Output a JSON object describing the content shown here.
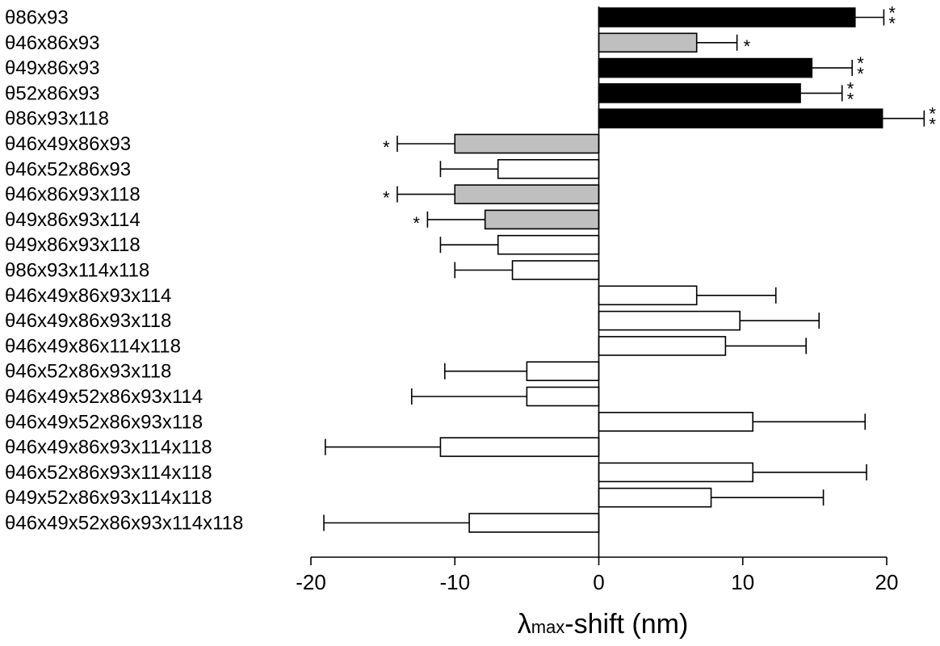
{
  "chart_data": {
    "type": "bar",
    "orientation": "horizontal",
    "categories": [
      "θ86x93",
      "θ46x86x93",
      "θ49x86x93",
      "θ52x86x93",
      "θ86x93x118",
      "θ46x49x86x93",
      "θ46x52x86x93",
      "θ46x86x93x118",
      "θ49x86x93x114",
      "θ49x86x93x118",
      "θ86x93x114x118",
      "θ46x49x86x93x114",
      "θ46x49x86x93x118",
      "θ46x49x86x114x118",
      "θ46x52x86x93x118",
      "θ46x49x52x86x93x114",
      "θ46x49x52x86x93x118",
      "θ46x49x86x93x114x118",
      "θ46x52x86x93x114x118",
      "θ49x52x86x93x114x118",
      "θ46x49x52x86x93x114x118"
    ],
    "values": [
      17.8,
      6.8,
      14.8,
      14.0,
      19.7,
      -10.0,
      -7.0,
      -10.0,
      -7.9,
      -7.0,
      -6.0,
      6.8,
      9.8,
      8.8,
      -5.0,
      -5.0,
      10.7,
      -11.0,
      10.7,
      7.8,
      -9.0
    ],
    "errors": [
      2.0,
      2.8,
      2.8,
      2.9,
      2.9,
      4.0,
      4.0,
      4.0,
      4.0,
      4.0,
      4.0,
      5.5,
      5.5,
      5.6,
      5.7,
      8.0,
      7.8,
      8.0,
      7.9,
      7.8,
      10.1
    ],
    "bar_colors": [
      "#000000",
      "#bfbfbf",
      "#000000",
      "#000000",
      "#000000",
      "#bfbfbf",
      "#ffffff",
      "#bfbfbf",
      "#bfbfbf",
      "#ffffff",
      "#ffffff",
      "#ffffff",
      "#ffffff",
      "#ffffff",
      "#ffffff",
      "#ffffff",
      "#ffffff",
      "#ffffff",
      "#ffffff",
      "#ffffff",
      "#ffffff"
    ],
    "significance": [
      "**",
      "*",
      "**",
      "**",
      "**",
      "*",
      "",
      "*",
      "*",
      "",
      "",
      "",
      "",
      "",
      "",
      "",
      "",
      "",
      "",
      "",
      ""
    ],
    "xlim": [
      -20,
      20
    ],
    "xticks": [
      -20,
      -10,
      0,
      10,
      20
    ],
    "xtick_labels": [
      "-20",
      "-10",
      "0",
      "10",
      "20"
    ],
    "xlabel_main": "λ",
    "xlabel_sub": "max",
    "xlabel_rest": "-shift (nm)",
    "grid": false
  }
}
